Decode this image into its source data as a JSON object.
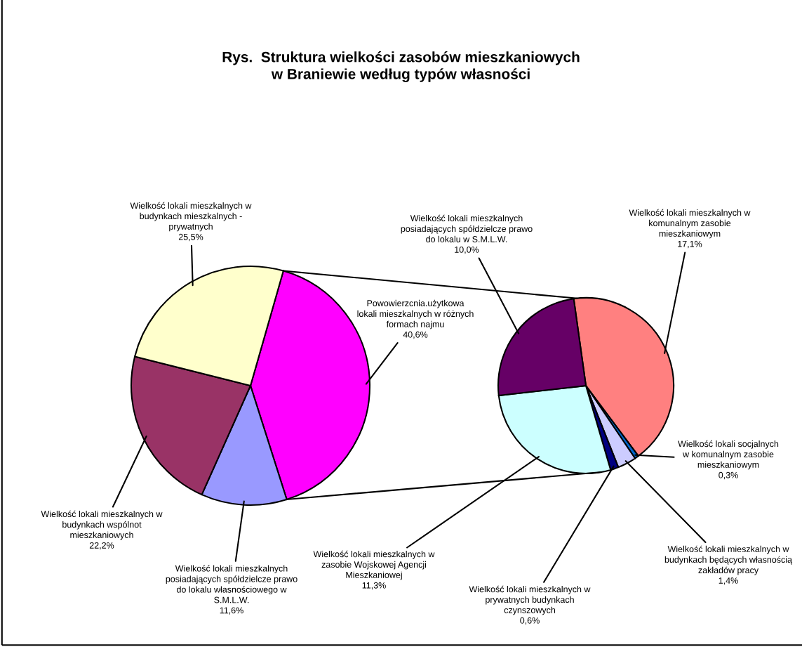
{
  "chart_data": [
    {
      "type": "pie",
      "title": "Rys.  Struktura wielkości zasobów mieszkaniowych\nw Braniewie według typów własności",
      "categories": [
        "Powowierzcnia.użytkowa\nlokali mieszkalnych w różnych\nformach najmu",
        "Wielkość lokali mieszkalnych\nposiadających spółdzielcze prawo\ndo lokalu własnościowego w\nS.M.L.W.",
        "Wielkość lokali mieszkalnych w\nbudynkach wspólnot\nmieszkaniowych",
        "Wielkość lokali mieszkalnych w\nbudynkach mieszkalnych -\nprywatnych"
      ],
      "values": [
        40.6,
        11.6,
        22.2,
        25.5
      ],
      "colors": [
        "#ff00ff",
        "#9999ff",
        "#993366",
        "#ffffcc"
      ],
      "value_labels": [
        "40,6%",
        "11,6%",
        "22,2%",
        "25,5%"
      ]
    },
    {
      "type": "pie",
      "categories": [
        "Wielkość lokali mieszkalnych w\nkomunalnym zasobie\nmieszkaniowym",
        "Wielkość lokali socjalnych\nw komunalnym zasobie\nmieszkaniowym",
        "Wielkość lokali mieszkalnych w\nbudynkach będących własnością\nzakładów pracy",
        "Wielkość lokali mieszkalnych w\nprywatnych budynkach\nczynszowych",
        "Wielkość lokali mieszkalnych w\nzasobie Wojskowej Agencji\nMieszkaniowej",
        "Wielkość lokali mieszkalnych\nposiadających spółdzielcze prawo\ndo lokalu w S.M.L.W."
      ],
      "values": [
        17.1,
        0.3,
        1.4,
        0.6,
        11.3,
        10.0
      ],
      "colors": [
        "#ff8080",
        "#0066cc",
        "#ccccff",
        "#000080",
        "#ccffff",
        "#660066"
      ],
      "value_labels": [
        "17,1%",
        "0,3%",
        "1,4%",
        "0,6%",
        "11,3%",
        "10,0%"
      ]
    }
  ]
}
